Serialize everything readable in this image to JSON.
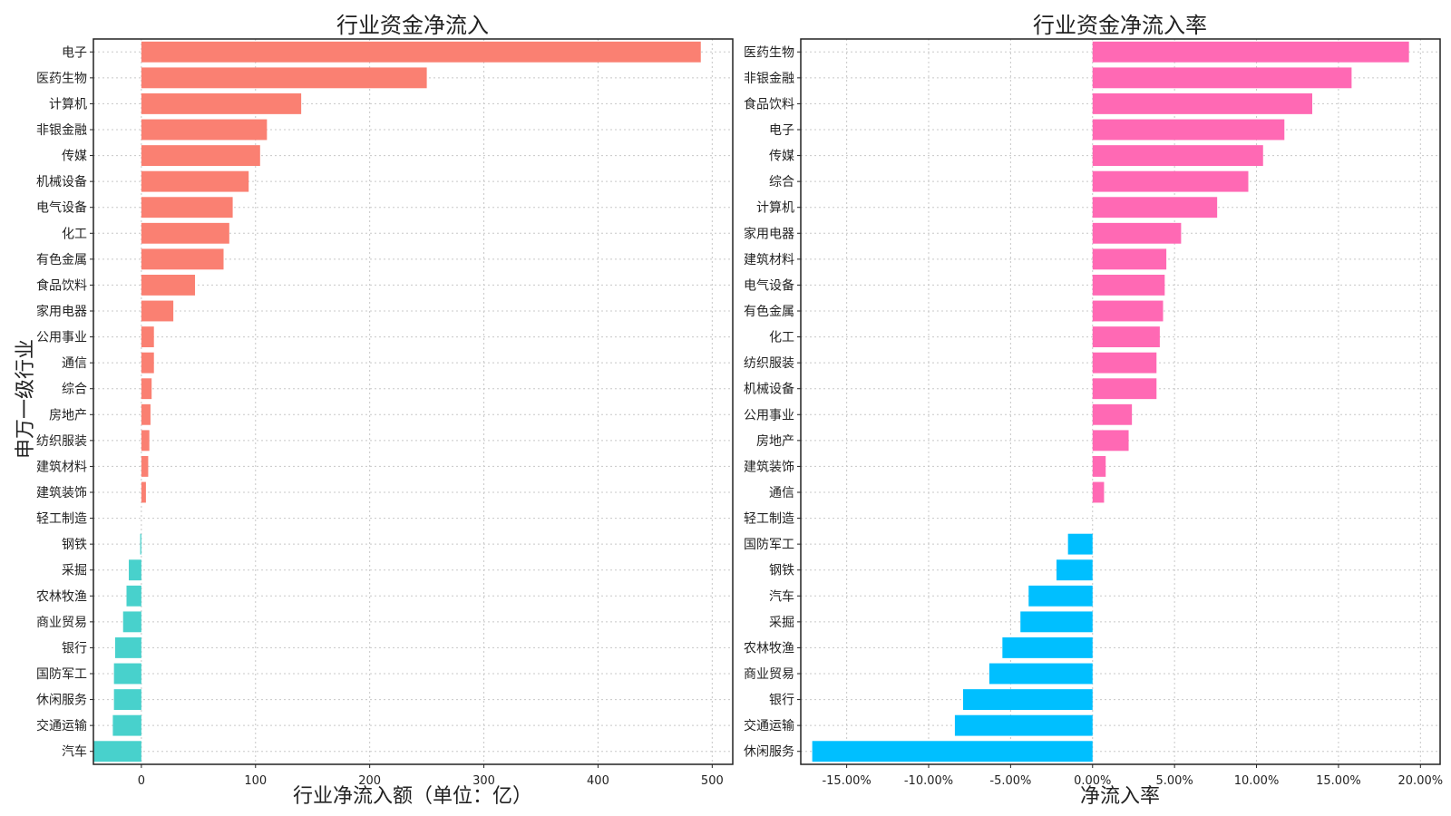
{
  "chart_data": [
    {
      "type": "bar",
      "orientation": "horizontal",
      "title": "行业资金净流入",
      "xlabel": "行业净流入额（单位：亿）",
      "ylabel": "申万一级行业",
      "xlim": [
        -42,
        518
      ],
      "xticks": [
        0,
        100,
        200,
        300,
        400,
        500
      ],
      "grid": true,
      "positive_color": "#FA8072",
      "negative_color": "#48D1CC",
      "categories": [
        "电子",
        "医药生物",
        "计算机",
        "非银金融",
        "传媒",
        "机械设备",
        "电气设备",
        "化工",
        "有色金属",
        "食品饮料",
        "家用电器",
        "公用事业",
        "通信",
        "综合",
        "房地产",
        "纺织服装",
        "建筑材料",
        "建筑装饰",
        "轻工制造",
        "钢铁",
        "采掘",
        "农林牧渔",
        "商业贸易",
        "银行",
        "国防军工",
        "休闲服务",
        "交通运输",
        "汽车"
      ],
      "values": [
        490,
        250,
        140,
        110,
        104,
        94,
        80,
        77,
        72,
        47,
        28,
        11,
        11,
        9,
        8,
        7,
        6,
        4,
        0,
        -1,
        -11,
        -13,
        -16,
        -23,
        -24,
        -24,
        -25,
        -42
      ]
    },
    {
      "type": "bar",
      "orientation": "horizontal",
      "title": "行业资金净流入率",
      "xlabel": "净流入率",
      "ylabel": "",
      "xlim": [
        -0.178,
        0.212
      ],
      "xticks": [
        -0.15,
        -0.1,
        -0.05,
        0.0,
        0.05,
        0.1,
        0.15,
        0.2
      ],
      "xtick_labels": [
        "-15.00%",
        "-10.00%",
        "-5.00%",
        "0.00%",
        "5.00%",
        "10.00%",
        "15.00%",
        "20.00%"
      ],
      "grid": true,
      "positive_color": "#FF69B4",
      "negative_color": "#00BFFF",
      "categories": [
        "医药生物",
        "非银金融",
        "食品饮料",
        "电子",
        "传媒",
        "综合",
        "计算机",
        "家用电器",
        "建筑材料",
        "电气设备",
        "有色金属",
        "化工",
        "纺织服装",
        "机械设备",
        "公用事业",
        "房地产",
        "建筑装饰",
        "通信",
        "轻工制造",
        "国防军工",
        "钢铁",
        "汽车",
        "采掘",
        "农林牧渔",
        "商业贸易",
        "银行",
        "交通运输",
        "休闲服务"
      ],
      "values": [
        0.193,
        0.158,
        0.134,
        0.117,
        0.104,
        0.095,
        0.076,
        0.054,
        0.045,
        0.044,
        0.043,
        0.041,
        0.039,
        0.039,
        0.024,
        0.022,
        0.008,
        0.007,
        0.0,
        -0.015,
        -0.022,
        -0.039,
        -0.044,
        -0.055,
        -0.063,
        -0.079,
        -0.084,
        -0.171
      ]
    }
  ]
}
